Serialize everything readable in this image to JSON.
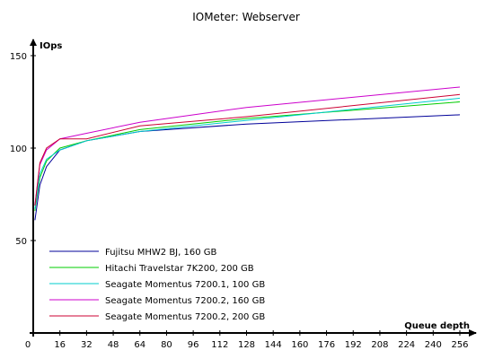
{
  "chart_data": {
    "type": "line",
    "title": "IOMeter: Webserver",
    "xlabel": "Queue depth",
    "ylabel": "IOps",
    "x": [
      1,
      4,
      8,
      16,
      32,
      64,
      128,
      256
    ],
    "xticks": [
      "0",
      "16",
      "32",
      "48",
      "64",
      "80",
      "96",
      "112",
      "128",
      "144",
      "160",
      "176",
      "192",
      "208",
      "224",
      "240",
      "256"
    ],
    "xlim": [
      0,
      256
    ],
    "ylim": [
      0,
      150
    ],
    "yticks": [
      "0",
      "50",
      "100",
      "150"
    ],
    "grid": false,
    "legend": "bottom-left",
    "series": [
      {
        "name": "Fujitsu MHW2 BJ, 160 GB",
        "color": "#000099",
        "values": [
          61,
          80,
          90,
          99,
          104,
          109,
          113,
          118
        ]
      },
      {
        "name": "Hitachi Travelstar 7K200, 200 GB",
        "color": "#00cc00",
        "values": [
          66,
          84,
          93,
          100,
          104,
          110,
          116,
          125
        ]
      },
      {
        "name": "Seagate Momentus 7200.1, 100 GB",
        "color": "#00cccc",
        "values": [
          67,
          86,
          94,
          99,
          104,
          109,
          115,
          127
        ]
      },
      {
        "name": "Seagate Momentus 7200.2, 160 GB",
        "color": "#cc00cc",
        "values": [
          69,
          91,
          99,
          105,
          108,
          114,
          122,
          133
        ]
      },
      {
        "name": "Seagate Momentus 7200.2, 200 GB",
        "color": "#cc0033",
        "values": [
          69,
          92,
          100,
          105,
          105,
          112,
          117,
          129
        ]
      }
    ]
  }
}
